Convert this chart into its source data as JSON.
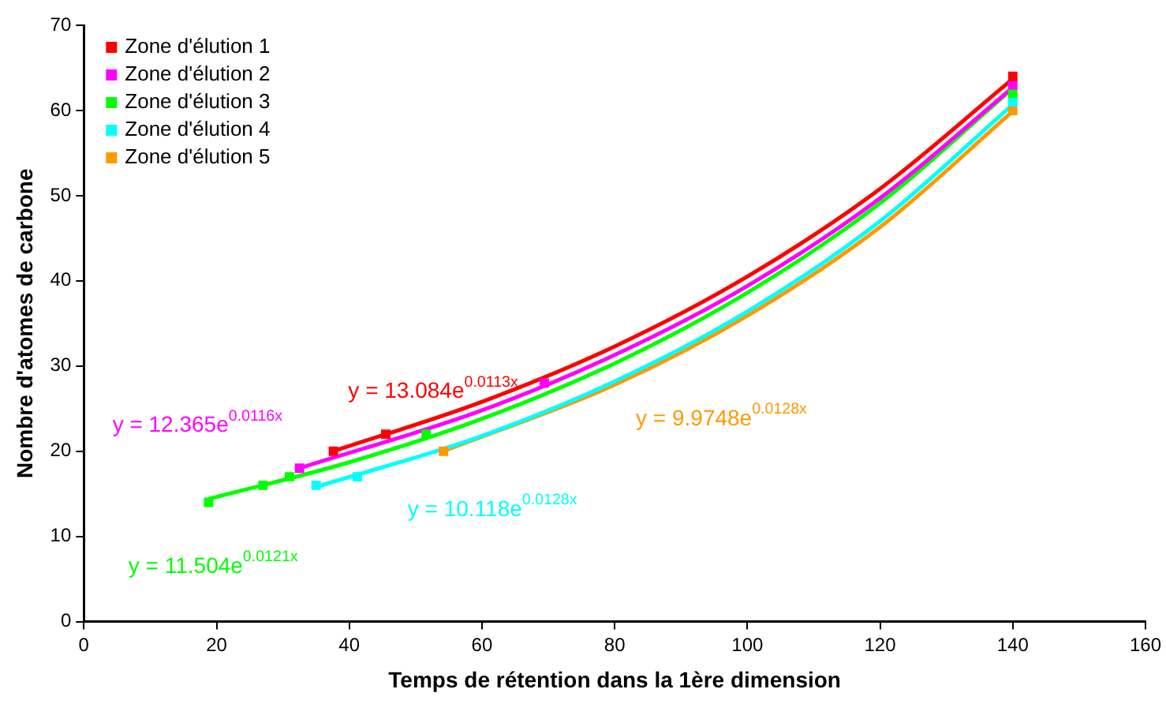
{
  "chart_data": {
    "type": "scatter",
    "xlabel": "Temps de rétention dans la 1ère dimension",
    "ylabel": "Nombre d'atomes de carbone",
    "xlim": [
      0,
      160
    ],
    "xticks": [
      0,
      20,
      40,
      60,
      80,
      100,
      120,
      140,
      160
    ],
    "ylim": [
      0,
      70
    ],
    "yticks": [
      0,
      10,
      20,
      30,
      40,
      50,
      60,
      70
    ],
    "grid": false,
    "legend": "top left",
    "marker": "square",
    "series": [
      {
        "name": "Zone d'élution 1",
        "color": "#ff0000",
        "x": [
          37.6,
          45.5,
          140
        ],
        "values": [
          20,
          22,
          64
        ]
      },
      {
        "name": "Zone d'élution 2",
        "color": "#ff00ff",
        "x": [
          32.5,
          69.4,
          140
        ],
        "values": [
          18,
          28,
          63
        ]
      },
      {
        "name": "Zone d'élution 3",
        "color": "#00ff00",
        "x": [
          18.8,
          27,
          31,
          51.6,
          140
        ],
        "values": [
          14,
          16,
          17,
          22,
          62
        ]
      },
      {
        "name": "Zone d'élution 4",
        "color": "#00ffff",
        "x": [
          35,
          41.2,
          140
        ],
        "values": [
          16,
          17,
          61
        ]
      },
      {
        "name": "Zone d'élution 5",
        "color": "#ff9900",
        "x": [
          54.2,
          140
        ],
        "values": [
          20,
          60
        ]
      },
      {
        "type": "line",
        "marker": "none",
        "color": "#ff0000",
        "x": [
          37.6,
          60,
          80,
          100,
          120,
          140
        ],
        "values": [
          20.0,
          25.8,
          32.3,
          40.5,
          50.8,
          63.7
        ]
      },
      {
        "type": "line",
        "marker": "none",
        "color": "#ff00ff",
        "x": [
          32.5,
          60,
          80,
          100,
          120,
          140
        ],
        "values": [
          18.0,
          24.8,
          31.3,
          39.4,
          49.7,
          62.7
        ]
      },
      {
        "type": "line",
        "marker": "none",
        "color": "#00ff00",
        "x": [
          18.8,
          40,
          60,
          80,
          100,
          120,
          140
        ],
        "values": [
          14.4,
          18.7,
          23.8,
          30.3,
          38.6,
          49.1,
          62.6
        ]
      },
      {
        "type": "line",
        "marker": "none",
        "color": "#00ffff",
        "x": [
          35,
          60,
          80,
          100,
          120,
          140
        ],
        "values": [
          15.8,
          21.8,
          28.2,
          36.4,
          47.0,
          60.7
        ]
      },
      {
        "type": "line",
        "marker": "none",
        "color": "#ff9900",
        "x": [
          54.2,
          80,
          100,
          120,
          140
        ],
        "values": [
          20.0,
          27.8,
          35.9,
          46.3,
          59.9
        ]
      }
    ],
    "annotations": [
      "y = 13.084e$^{0.0113x}$",
      "y = 12.365e$^{0.0116x}$",
      "y = 11.504e$^{0.0121x}$",
      "y = 10.118e$^{0.0128x}$",
      "y = 9.9748e$^{0.0128x}$"
    ]
  }
}
